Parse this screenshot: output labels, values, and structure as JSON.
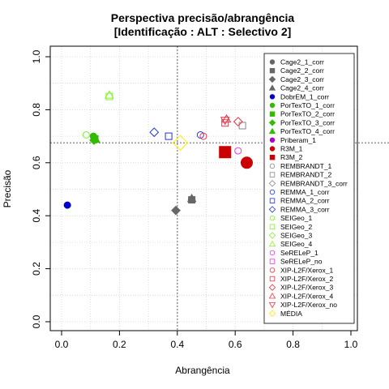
{
  "chart_data": {
    "type": "scatter",
    "title": "Perspectiva precisão/abrangência",
    "subtitle": "[Identificação : ALT : Selectivo 2]",
    "xlabel": "Abrangência",
    "ylabel": "Precisão",
    "xlim": [
      0,
      1
    ],
    "ylim": [
      0,
      1
    ],
    "xticks": [
      "0.0",
      "0.2",
      "0.4",
      "0.6",
      "0.8",
      "1.0"
    ],
    "yticks": [
      "0.0",
      "0.2",
      "0.4",
      "0.6",
      "0.8",
      "1.0"
    ],
    "grid": true,
    "legend_position": "top-right",
    "reference_lines": {
      "x": 0.4,
      "y": 0.675
    },
    "series": [
      {
        "name": "Cage2_1_corr",
        "marker": "circle",
        "color": "#666666",
        "filled": true,
        "x": 0.45,
        "y": 0.46
      },
      {
        "name": "Cage2_2_corr",
        "marker": "square",
        "color": "#666666",
        "filled": true,
        "x": 0.45,
        "y": 0.46
      },
      {
        "name": "Cage2_3_corr",
        "marker": "diamond",
        "color": "#666666",
        "filled": true,
        "x": 0.395,
        "y": 0.42
      },
      {
        "name": "Cage2_4_corr",
        "marker": "triangle-up",
        "color": "#666666",
        "filled": true,
        "x": 0.45,
        "y": 0.465
      },
      {
        "name": "DobrEM_1_corr",
        "marker": "circle",
        "color": "#0000cc",
        "filled": true,
        "x": 0.02,
        "y": 0.44
      },
      {
        "name": "PorTexTO_1_corr",
        "marker": "circle",
        "color": "#33bb00",
        "filled": true,
        "x": 0.11,
        "y": 0.7
      },
      {
        "name": "PorTexTO_2_corr",
        "marker": "square",
        "color": "#33bb00",
        "filled": true,
        "x": 0.115,
        "y": 0.69
      },
      {
        "name": "PorTexTO_3_corr",
        "marker": "diamond",
        "color": "#33bb00",
        "filled": true,
        "x": 0.112,
        "y": 0.685
      },
      {
        "name": "PorTexTO_4_corr",
        "marker": "triangle-up",
        "color": "#33bb00",
        "filled": true,
        "x": 0.118,
        "y": 0.688
      },
      {
        "name": "Priberam_1",
        "marker": "circle",
        "color": "#aa00cc",
        "filled": true,
        "x": null,
        "y": null
      },
      {
        "name": "R3M_1",
        "marker": "circle",
        "color": "#cc0000",
        "filled": true,
        "x": 0.64,
        "y": 0.6
      },
      {
        "name": "R3M_2",
        "marker": "square",
        "color": "#cc0000",
        "filled": true,
        "x": 0.565,
        "y": 0.64
      },
      {
        "name": "REMBRANDT_1",
        "marker": "circle",
        "color": "#888888",
        "filled": false,
        "x": null,
        "y": null
      },
      {
        "name": "REMBRANDT_2",
        "marker": "square",
        "color": "#888888",
        "filled": false,
        "x": 0.625,
        "y": 0.74
      },
      {
        "name": "REMBRANDT_3_corr",
        "marker": "diamond",
        "color": "#888888",
        "filled": false,
        "x": null,
        "y": null
      },
      {
        "name": "REMMA_1_corr",
        "marker": "circle",
        "color": "#2233dd",
        "filled": false,
        "x": 0.48,
        "y": 0.705
      },
      {
        "name": "REMMA_2_corr",
        "marker": "square",
        "color": "#2233dd",
        "filled": false,
        "x": 0.37,
        "y": 0.7
      },
      {
        "name": "REMMA_3_corr",
        "marker": "diamond",
        "color": "#2233dd",
        "filled": false,
        "x": 0.32,
        "y": 0.715
      },
      {
        "name": "SEIGeo_1",
        "marker": "circle",
        "color": "#88ee33",
        "filled": false,
        "x": 0.085,
        "y": 0.705
      },
      {
        "name": "SEIGeo_2",
        "marker": "square",
        "color": "#88ee33",
        "filled": false,
        "x": 0.165,
        "y": 0.85
      },
      {
        "name": "SEIGeo_3",
        "marker": "diamond",
        "color": "#88ee33",
        "filled": false,
        "x": null,
        "y": null
      },
      {
        "name": "SEIGeo_4",
        "marker": "triangle-up",
        "color": "#88ee33",
        "filled": false,
        "x": 0.165,
        "y": 0.855
      },
      {
        "name": "SeRELeP_1",
        "marker": "circle",
        "color": "#ee33ee",
        "filled": false,
        "x": 0.61,
        "y": 0.645
      },
      {
        "name": "SeRELeP_no",
        "marker": "square",
        "color": "#ee33ee",
        "filled": false,
        "x": null,
        "y": null
      },
      {
        "name": "XIP-L2F/Xerox_1",
        "marker": "circle",
        "color": "#ee3344",
        "filled": false,
        "x": 0.49,
        "y": 0.7
      },
      {
        "name": "XIP-L2F/Xerox_2",
        "marker": "square",
        "color": "#ee3344",
        "filled": false,
        "x": 0.565,
        "y": 0.75
      },
      {
        "name": "XIP-L2F/Xerox_3",
        "marker": "diamond",
        "color": "#ee3344",
        "filled": false,
        "x": 0.61,
        "y": 0.755
      },
      {
        "name": "XIP-L2F/Xerox_4",
        "marker": "triangle-up",
        "color": "#ee3344",
        "filled": false,
        "x": 0.57,
        "y": 0.765
      },
      {
        "name": "XIP-L2F/Xerox_no",
        "marker": "triangle-down",
        "color": "#ee3344",
        "filled": false,
        "x": 0.565,
        "y": 0.76
      },
      {
        "name": "MÉDIA",
        "marker": "diamond",
        "color": "#ffee00",
        "filled": false,
        "x": 0.41,
        "y": 0.675
      }
    ]
  }
}
